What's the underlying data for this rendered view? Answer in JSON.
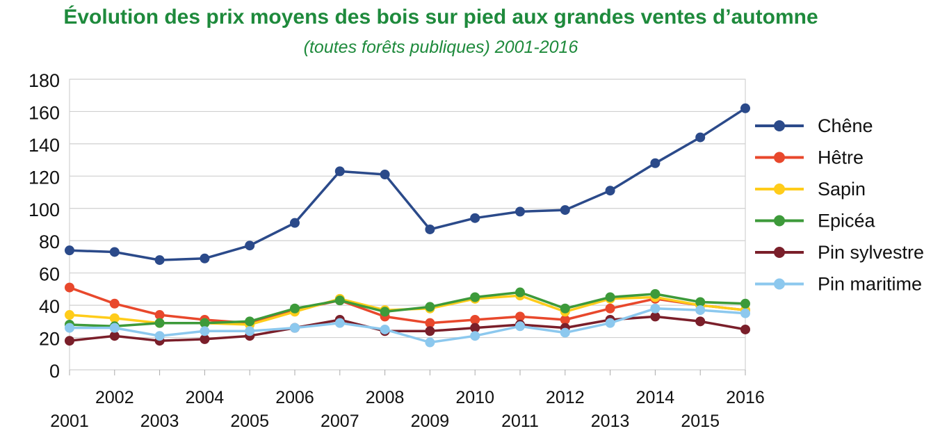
{
  "chart_data": {
    "type": "line",
    "title": "Évolution des prix moyens des bois sur pied aux grandes ventes d’automne",
    "subtitle": "(toutes forêts publiques) 2001-2016",
    "x": [
      "2001",
      "2002",
      "2003",
      "2004",
      "2005",
      "2006",
      "2007",
      "2008",
      "2009",
      "2010",
      "2011",
      "2012",
      "2013",
      "2014",
      "2015",
      "2016"
    ],
    "ylim": [
      0,
      180
    ],
    "yticks": [
      "0",
      "20",
      "40",
      "60",
      "80",
      "100",
      "120",
      "140",
      "160",
      "180"
    ],
    "grid": true,
    "legend_position": "right",
    "series": [
      {
        "name": "Chêne",
        "color": "#2b4a8a",
        "values": [
          74,
          73,
          68,
          69,
          77,
          91,
          123,
          121,
          87,
          94,
          98,
          99,
          111,
          128,
          144,
          162
        ]
      },
      {
        "name": "Hêtre",
        "color": "#e8482c",
        "values": [
          51,
          41,
          34,
          31,
          29,
          37,
          43,
          33,
          29,
          31,
          33,
          31,
          38,
          44,
          40,
          37
        ]
      },
      {
        "name": "Sapin",
        "color": "#ffcc1a",
        "values": [
          34,
          32,
          29,
          29,
          28,
          36,
          44,
          37,
          38,
          44,
          46,
          36,
          44,
          45,
          40,
          37
        ]
      },
      {
        "name": "Epicéa",
        "color": "#3d9a3a",
        "values": [
          28,
          27,
          29,
          29,
          30,
          38,
          43,
          36,
          39,
          45,
          48,
          38,
          45,
          47,
          42,
          41
        ]
      },
      {
        "name": "Pin sylvestre",
        "color": "#7a1f2a",
        "values": [
          18,
          21,
          18,
          19,
          21,
          26,
          31,
          24,
          24,
          26,
          28,
          26,
          31,
          33,
          30,
          25
        ]
      },
      {
        "name": "Pin maritime",
        "color": "#8cc8ee",
        "values": [
          26,
          26,
          21,
          24,
          24,
          26,
          29,
          25,
          17,
          21,
          27,
          23,
          29,
          38,
          37,
          35
        ]
      }
    ]
  }
}
